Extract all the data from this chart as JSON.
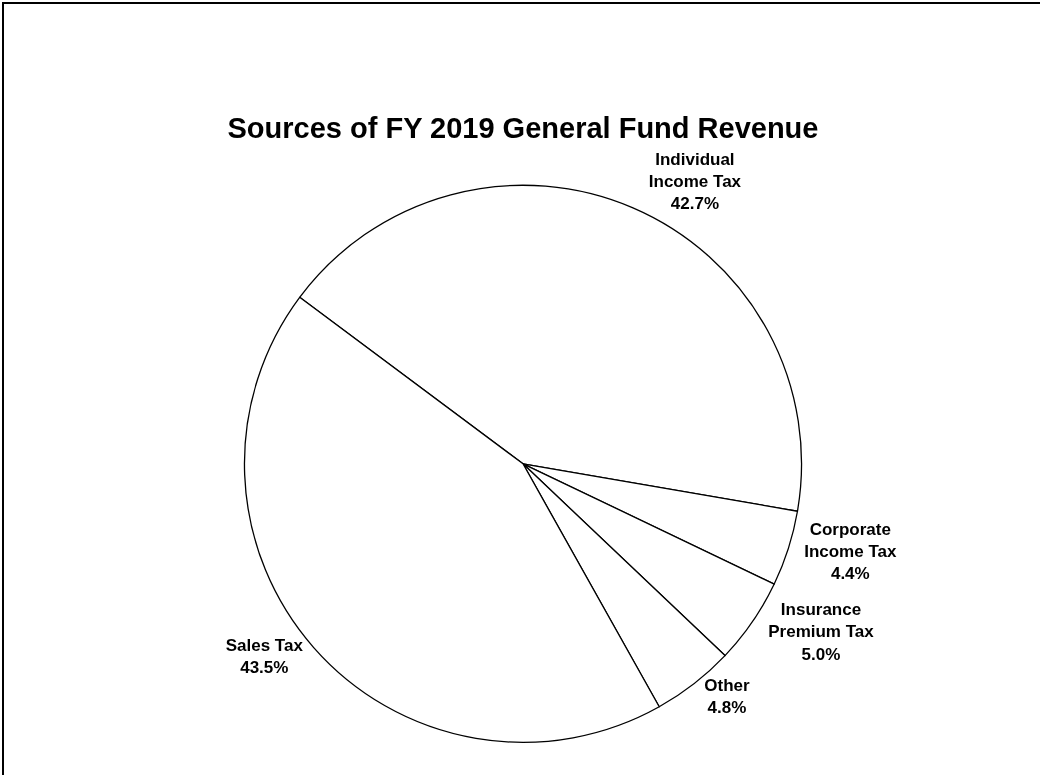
{
  "chart_data": {
    "type": "pie",
    "title": "Sources of FY 2019 General Fund Revenue",
    "categories": [
      "Individual Income Tax",
      "Corporate Income Tax",
      "Insurance Premium Tax",
      "Other",
      "Sales Tax"
    ],
    "values": [
      42.7,
      4.4,
      5.0,
      4.8,
      43.5
    ],
    "value_labels": [
      "42.7%",
      "4.4%",
      "5.0%",
      "4.8%",
      "43.5%"
    ],
    "colors": [
      "#ffffff",
      "#ffffff",
      "#ffffff",
      "#ffffff",
      "#ffffff"
    ]
  }
}
